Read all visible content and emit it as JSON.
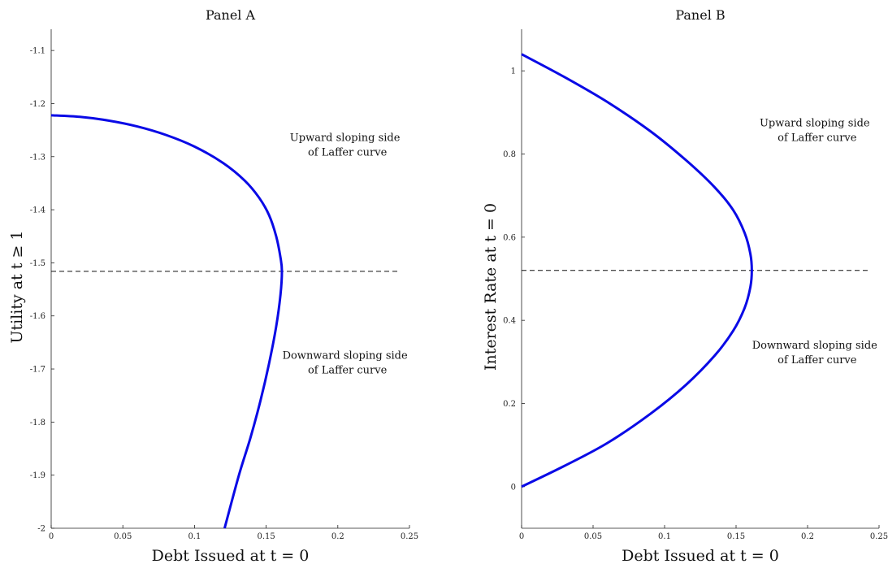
{
  "chart_data": [
    {
      "type": "line",
      "title": "Panel A",
      "xlabel": "Debt Issued at t = 0",
      "ylabel": "Utility at t ≥ 1",
      "xlim": [
        0,
        0.25
      ],
      "ylim": [
        -2,
        -1.06
      ],
      "xticks": [
        "0",
        "0.05",
        "0.1",
        "0.15",
        "0.2",
        "0.25"
      ],
      "yticks": [
        "-1.1",
        "-1.2",
        "-1.3",
        "-1.4",
        "-1.5",
        "-1.6",
        "-1.7",
        "-1.8",
        "-1.9",
        "-2"
      ],
      "series": [
        {
          "color": "#0a0ae6",
          "x": [
            0,
            0.02,
            0.04,
            0.06,
            0.08,
            0.1,
            0.12,
            0.135,
            0.145,
            0.152,
            0.157,
            0.16,
            0.161,
            0.16,
            0.157,
            0.152,
            0.146,
            0.139,
            0.131,
            0.121
          ],
          "y": [
            -1.222,
            -1.225,
            -1.232,
            -1.243,
            -1.259,
            -1.281,
            -1.312,
            -1.345,
            -1.377,
            -1.41,
            -1.45,
            -1.49,
            -1.516,
            -1.56,
            -1.62,
            -1.69,
            -1.76,
            -1.83,
            -1.9,
            -2.0
          ]
        }
      ],
      "reference_line": {
        "y": -1.516,
        "x_range": [
          0.0,
          0.242
        ],
        "style": "dashed"
      },
      "annotations": [
        {
          "lines": [
            "Upward sloping side",
            "of Laffer curve"
          ],
          "x": 0.205,
          "y": -1.28
        },
        {
          "lines": [
            "Downward sloping side",
            "of Laffer curve"
          ],
          "x": 0.205,
          "y": -1.69
        }
      ]
    },
    {
      "type": "line",
      "title": "Panel B",
      "xlabel": "Debt Issued at t = 0",
      "ylabel": "Interest Rate at t = 0",
      "xlim": [
        0,
        0.25
      ],
      "ylim": [
        -0.1,
        1.1
      ],
      "xticks": [
        "0",
        "0.05",
        "0.1",
        "0.15",
        "0.2",
        "0.25"
      ],
      "yticks": [
        "0",
        "0.2",
        "0.4",
        "0.6",
        "0.8",
        "1"
      ],
      "series": [
        {
          "color": "#0a0ae6",
          "x": [
            0.0,
            0.03,
            0.06,
            0.09,
            0.115,
            0.135,
            0.148,
            0.156,
            0.16,
            0.161,
            0.16,
            0.156,
            0.148,
            0.135,
            0.115,
            0.09,
            0.06,
            0.03,
            0.0
          ],
          "y": [
            1.04,
            0.985,
            0.925,
            0.855,
            0.785,
            0.72,
            0.665,
            0.61,
            0.56,
            0.52,
            0.48,
            0.43,
            0.375,
            0.315,
            0.245,
            0.175,
            0.105,
            0.05,
            0.0
          ]
        }
      ],
      "reference_line": {
        "y": 0.52,
        "x_range": [
          0.0,
          0.242
        ],
        "style": "dashed"
      },
      "annotations": [
        {
          "lines": [
            "Upward sloping side",
            "of Laffer curve"
          ],
          "x": 0.205,
          "y": 0.855
        },
        {
          "lines": [
            "Downward sloping side",
            "of Laffer curve"
          ],
          "x": 0.205,
          "y": 0.32
        }
      ]
    }
  ]
}
